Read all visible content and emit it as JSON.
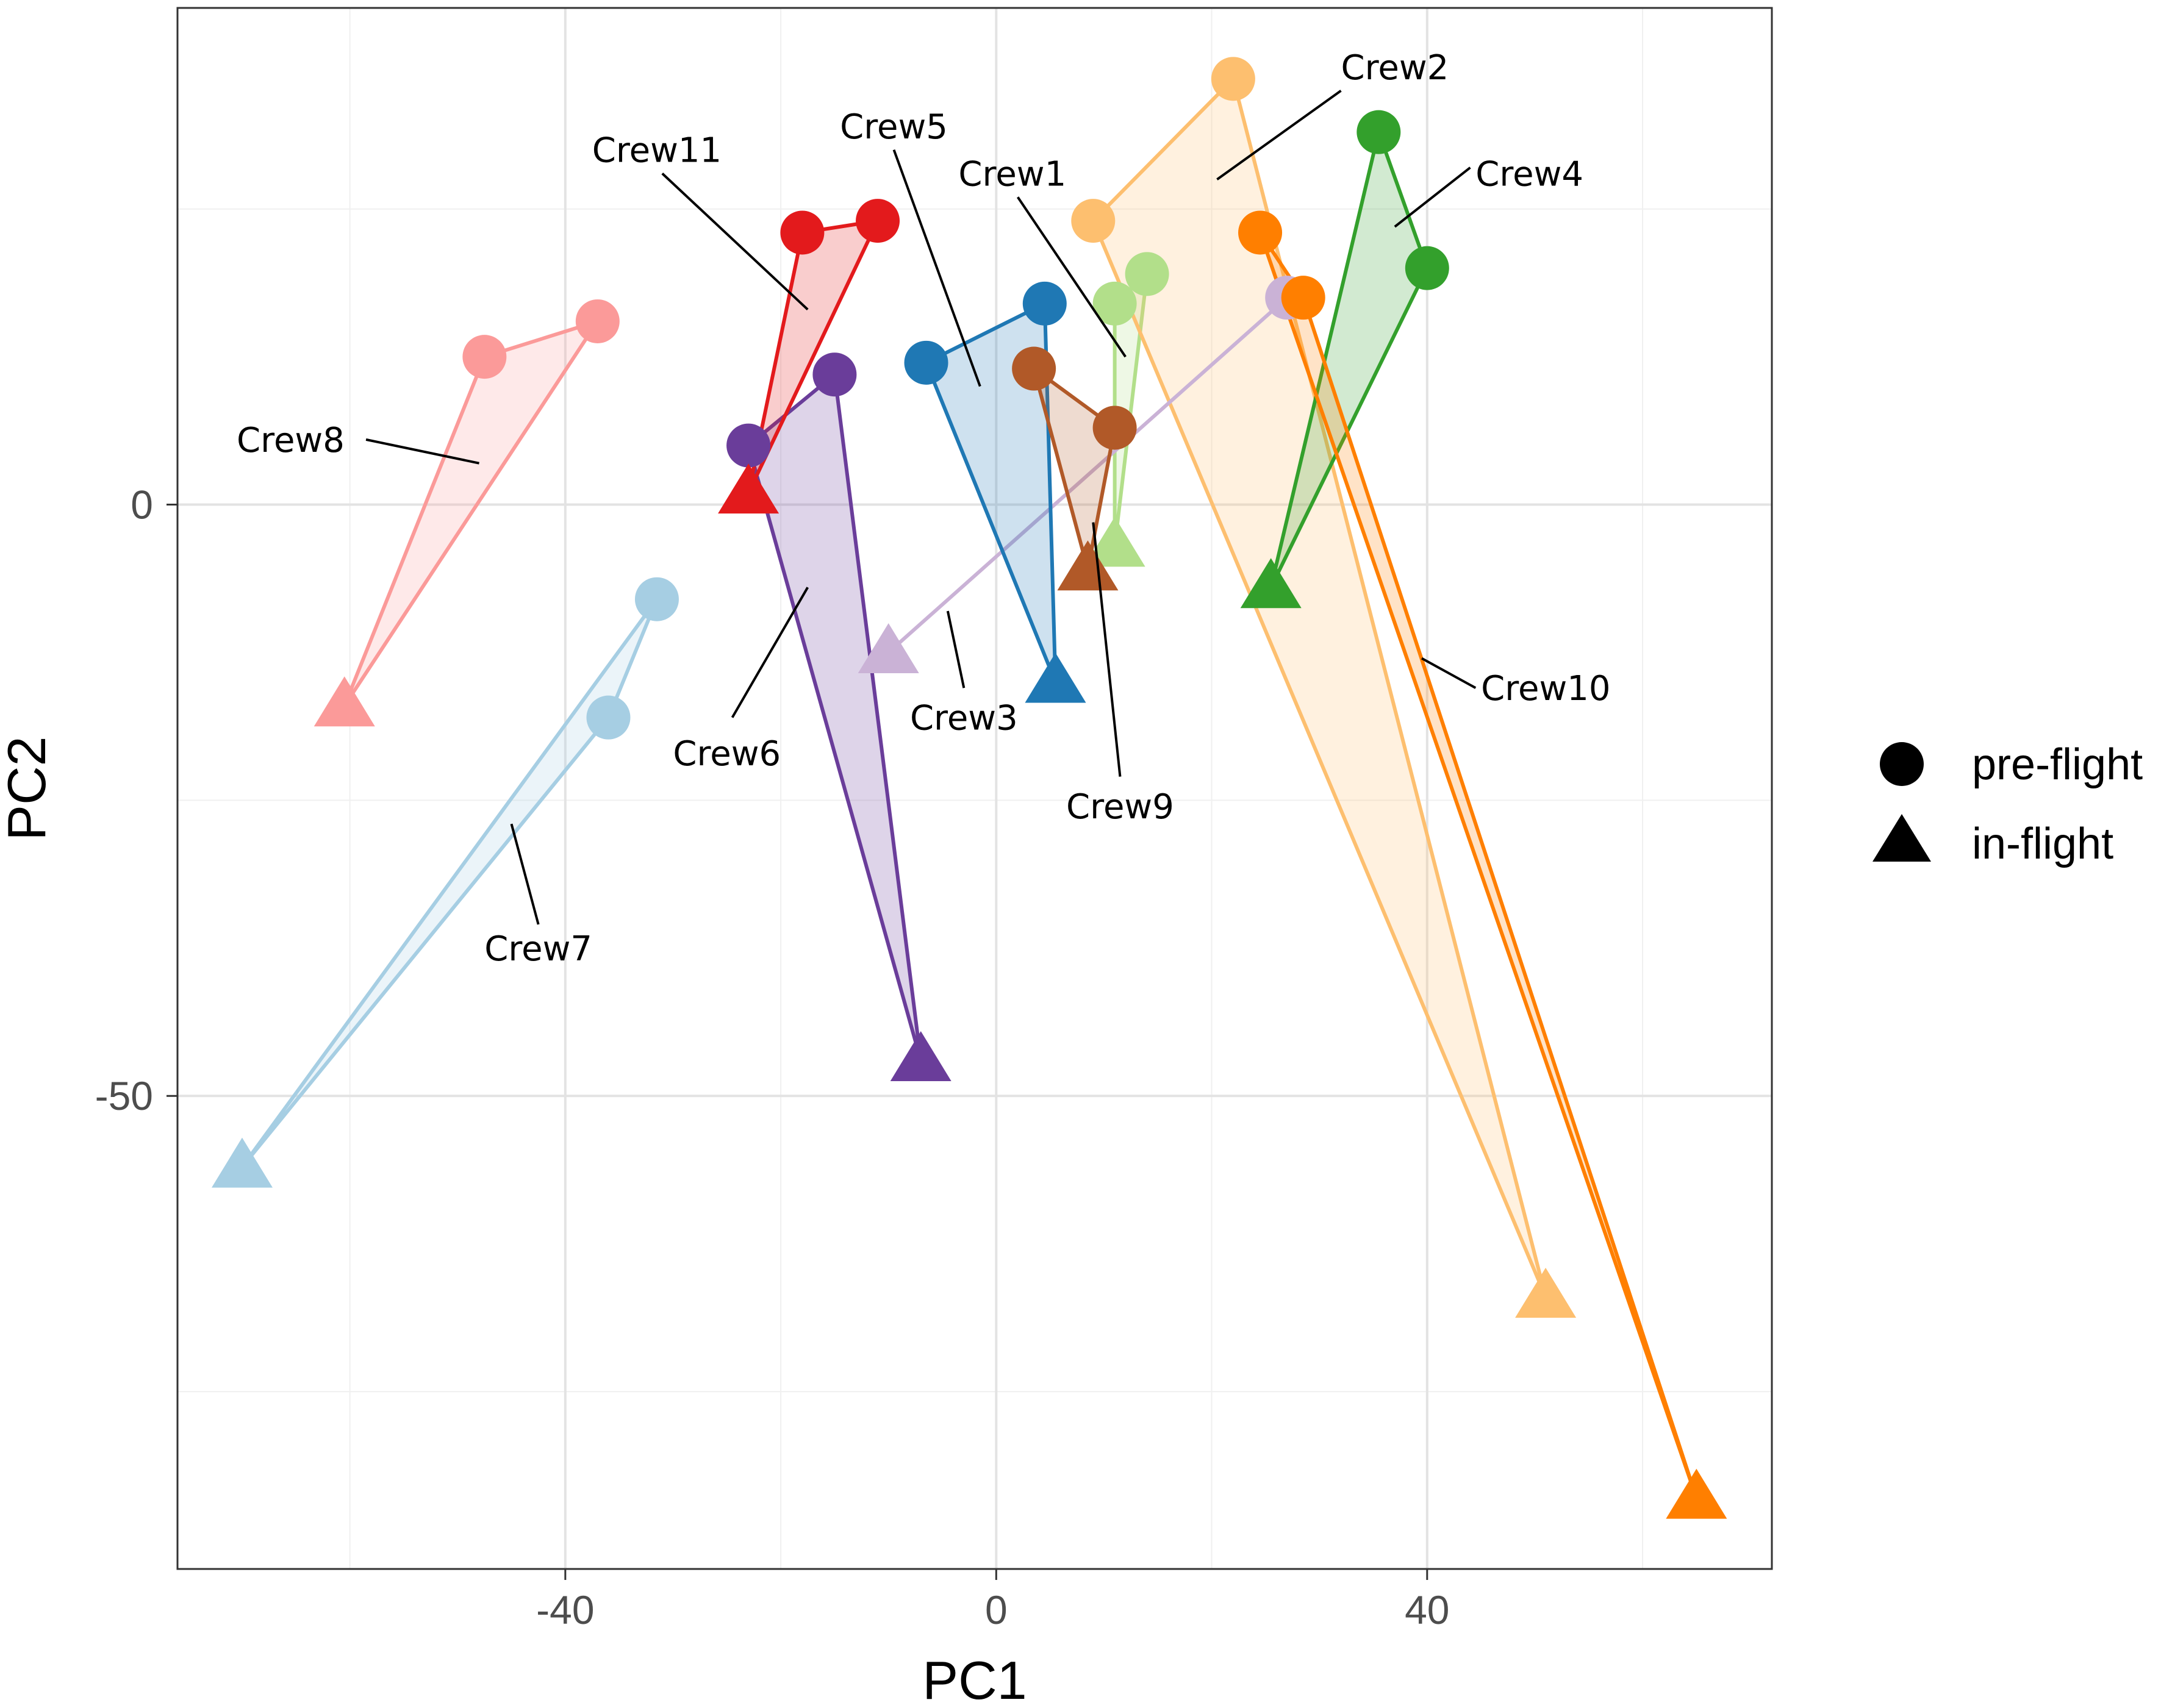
{
  "chart_data": {
    "type": "scatter",
    "title": "",
    "xlabel": "PC1",
    "ylabel": "PC2",
    "xlim": [
      -76,
      72
    ],
    "ylim": [
      -90,
      42
    ],
    "xticks": [
      -40,
      0,
      40
    ],
    "yticks": [
      0,
      -50
    ],
    "minor_xticks": [
      -60,
      -20,
      20,
      60
    ],
    "minor_yticks": [
      25,
      -25,
      -75
    ],
    "grid": true,
    "legend": {
      "position": "right",
      "entries": [
        {
          "label": "pre-flight",
          "shape": "circle"
        },
        {
          "label": "in-flight",
          "shape": "triangle"
        }
      ]
    },
    "series": [
      {
        "name": "Crew1",
        "color": "#b2df8a",
        "pre": [
          [
            11,
            17
          ],
          [
            14,
            19.5
          ]
        ],
        "in": [
          11,
          -3.5
        ],
        "label_at": [
          1.5,
          28
        ],
        "label_anchor": "middle",
        "leader": [
          [
            2,
            26
          ],
          [
            12,
            12.5
          ]
        ]
      },
      {
        "name": "Crew2",
        "color": "#fdbf6f",
        "pre": [
          [
            9,
            24
          ],
          [
            22,
            36
          ]
        ],
        "in": [
          51,
          -67
        ],
        "label_at": [
          32,
          37
        ],
        "label_anchor": "start",
        "leader": [
          [
            32,
            35
          ],
          [
            20.5,
            27.5
          ]
        ]
      },
      {
        "name": "Crew3",
        "color": "#cab2d6",
        "pre": [
          [
            27,
            17.5
          ]
        ],
        "in": [
          -10,
          -12.5
        ],
        "label_at": [
          -3,
          -18
        ],
        "label_anchor": "middle",
        "leader": [
          [
            -3,
            -15.5
          ],
          [
            -4.5,
            -9
          ]
        ]
      },
      {
        "name": "Crew4",
        "color": "#33a02c",
        "pre": [
          [
            35.5,
            31.5
          ],
          [
            40,
            20
          ]
        ],
        "in": [
          25.5,
          -7
        ],
        "label_at": [
          44.5,
          28
        ],
        "label_anchor": "start",
        "leader": [
          [
            44,
            28.5
          ],
          [
            37,
            23.5
          ]
        ]
      },
      {
        "name": "Crew5",
        "color": "#1f78b4",
        "pre": [
          [
            -6.5,
            12
          ],
          [
            4.5,
            17
          ]
        ],
        "in": [
          5.5,
          -15
        ],
        "label_at": [
          -9.5,
          32
        ],
        "label_anchor": "middle",
        "leader": [
          [
            -9.5,
            30
          ],
          [
            -1.5,
            10
          ]
        ]
      },
      {
        "name": "Crew6",
        "color": "#6a3d9a",
        "pre": [
          [
            -23,
            5
          ],
          [
            -15,
            11
          ]
        ],
        "in": [
          -7,
          -47
        ],
        "label_at": [
          -25,
          -21
        ],
        "label_anchor": "middle",
        "leader": [
          [
            -24.5,
            -18
          ],
          [
            -17.5,
            -7
          ]
        ]
      },
      {
        "name": "Crew7",
        "color": "#a6cee3",
        "pre": [
          [
            -31.5,
            -8
          ],
          [
            -36,
            -18
          ]
        ],
        "in": [
          -70,
          -56
        ],
        "label_at": [
          -42.5,
          -37.5
        ],
        "label_anchor": "middle",
        "leader": [
          [
            -42.5,
            -35.5
          ],
          [
            -45,
            -27
          ]
        ]
      },
      {
        "name": "Crew8",
        "color": "#fb9a99",
        "pre": [
          [
            -47.5,
            12.5
          ],
          [
            -37,
            15.5
          ]
        ],
        "in": [
          -60.5,
          -17
        ],
        "label_at": [
          -65.5,
          5.5
        ],
        "label_anchor": "middle",
        "leader": [
          [
            -58.5,
            5.5
          ],
          [
            -48,
            3.5
          ]
        ]
      },
      {
        "name": "Crew9",
        "color": "#b15928",
        "pre": [
          [
            3.5,
            11.5
          ],
          [
            11,
            6.5
          ]
        ],
        "in": [
          8.5,
          -5.5
        ],
        "label_at": [
          11.5,
          -25.5
        ],
        "label_anchor": "middle",
        "leader": [
          [
            11.5,
            -23
          ],
          [
            9,
            -1.5
          ]
        ]
      },
      {
        "name": "Crew10",
        "color": "#ff7f00",
        "pre": [
          [
            24.5,
            23
          ],
          [
            28.5,
            17.5
          ]
        ],
        "in": [
          65,
          -84
        ],
        "label_at": [
          45,
          -15.5
        ],
        "label_anchor": "start",
        "leader": [
          [
            44.5,
            -15.5
          ],
          [
            39.5,
            -13
          ]
        ]
      },
      {
        "name": "Crew11",
        "color": "#e31a1c",
        "pre": [
          [
            -18,
            23
          ],
          [
            -11,
            24
          ]
        ],
        "in": [
          -23,
          1
        ],
        "label_at": [
          -31.5,
          30
        ],
        "label_anchor": "middle",
        "leader": [
          [
            -31,
            28
          ],
          [
            -17.5,
            16.5
          ]
        ]
      }
    ]
  }
}
